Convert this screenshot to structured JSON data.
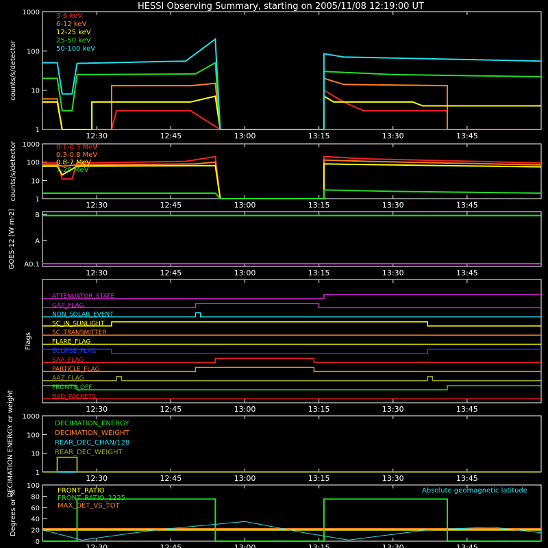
{
  "title": "HESSI Observing Summary, starting on 2005/11/08 12:19:00 UT",
  "time_ticks": [
    "12:30",
    "12:45",
    "13:00",
    "13:15",
    "13:30",
    "13:45"
  ],
  "colors": {
    "red": "#ff2020",
    "orange": "#ff8020",
    "yellow": "#ffff00",
    "green": "#20e020",
    "cyan": "#20e0f0",
    "magenta": "#e020e0",
    "blue": "#2040ff",
    "olive": "#a0a020",
    "white": "#ffffff",
    "axis": "#ffffff"
  },
  "chart_data": [
    {
      "type": "line",
      "ylabel": "counts/s/detector",
      "y_scale": "log",
      "y_ticks": [
        "1",
        "10",
        "100",
        "1000"
      ],
      "ylim": [
        1,
        1000
      ],
      "xlim": [
        "12:19",
        "14:00"
      ],
      "legend": [
        "3-6 keV",
        "6-12 keV",
        "12-25 keV",
        "25-50 keV",
        "50-100 keV"
      ],
      "series": [
        {
          "name": "3-6 keV",
          "color": "red",
          "points": [
            [
              "12:19",
              5
            ],
            [
              "12:22",
              5
            ],
            [
              "12:23",
              1
            ],
            [
              "12:33",
              1
            ],
            [
              "12:34",
              3
            ],
            [
              "12:49",
              3
            ],
            [
              "12:55",
              1
            ],
            [
              "13:16",
              1
            ],
            [
              "13:16",
              10
            ],
            [
              "13:20",
              5
            ],
            [
              "13:24",
              3
            ],
            [
              "13:41",
              3
            ],
            [
              "13:41",
              1
            ],
            [
              "14:00",
              1
            ]
          ]
        },
        {
          "name": "6-12 keV",
          "color": "orange",
          "points": [
            [
              "12:19",
              6
            ],
            [
              "12:22",
              6
            ],
            [
              "12:23",
              1
            ],
            [
              "12:33",
              1
            ],
            [
              "12:33",
              13
            ],
            [
              "12:49",
              13
            ],
            [
              "12:54",
              15
            ],
            [
              "12:55",
              1
            ],
            [
              "13:16",
              1
            ],
            [
              "13:16",
              20
            ],
            [
              "13:20",
              14
            ],
            [
              "13:41",
              13
            ],
            [
              "13:41",
              1
            ],
            [
              "14:00",
              1
            ]
          ]
        },
        {
          "name": "12-25 keV",
          "color": "yellow",
          "points": [
            [
              "12:19",
              5
            ],
            [
              "12:22",
              5
            ],
            [
              "12:23",
              1
            ],
            [
              "12:29",
              1
            ],
            [
              "12:29",
              5
            ],
            [
              "12:49",
              5
            ],
            [
              "12:54",
              7
            ],
            [
              "12:55",
              1
            ],
            [
              "13:16",
              1
            ],
            [
              "13:16",
              7
            ],
            [
              "13:18",
              5
            ],
            [
              "13:34",
              5
            ],
            [
              "13:36",
              4
            ],
            [
              "14:00",
              4
            ]
          ]
        },
        {
          "name": "25-50 keV",
          "color": "green",
          "points": [
            [
              "12:19",
              20
            ],
            [
              "12:22",
              20
            ],
            [
              "12:23",
              3
            ],
            [
              "12:25",
              3
            ],
            [
              "12:26",
              25
            ],
            [
              "12:50",
              26
            ],
            [
              "12:54",
              50
            ],
            [
              "12:55",
              1
            ],
            [
              "13:16",
              1
            ],
            [
              "13:16",
              30
            ],
            [
              "13:30",
              25
            ],
            [
              "14:00",
              22
            ]
          ]
        },
        {
          "name": "50-100 keV",
          "color": "cyan",
          "points": [
            [
              "12:19",
              50
            ],
            [
              "12:22",
              50
            ],
            [
              "12:23",
              8
            ],
            [
              "12:25",
              8
            ],
            [
              "12:26",
              48
            ],
            [
              "12:48",
              55
            ],
            [
              "12:54",
              200
            ],
            [
              "12:55",
              1
            ],
            [
              "13:16",
              1
            ],
            [
              "13:16",
              85
            ],
            [
              "13:20",
              70
            ],
            [
              "14:00",
              55
            ]
          ]
        }
      ]
    },
    {
      "type": "line",
      "ylabel": "counts/s/detector",
      "y_scale": "log",
      "y_ticks": [
        "1",
        "10",
        "100",
        "1000"
      ],
      "ylim": [
        1,
        1000
      ],
      "legend": [
        "0.1-0.3 MeV",
        "0.3-0.8 MeV",
        "0.8-7 MeV",
        "7-20 MeV"
      ],
      "series": [
        {
          "name": "0.1-0.3 MeV",
          "color": "red",
          "points": [
            [
              "12:19",
              90
            ],
            [
              "12:22",
              90
            ],
            [
              "12:23",
              12
            ],
            [
              "12:25",
              12
            ],
            [
              "12:26",
              90
            ],
            [
              "12:48",
              110
            ],
            [
              "12:54",
              200
            ],
            [
              "12:55",
              1
            ],
            [
              "13:16",
              1
            ],
            [
              "13:16",
              200
            ],
            [
              "13:25",
              150
            ],
            [
              "14:00",
              90
            ]
          ]
        },
        {
          "name": "0.3-0.8 MeV",
          "color": "orange",
          "points": [
            [
              "12:19",
              70
            ],
            [
              "12:22",
              70
            ],
            [
              "12:23",
              60
            ],
            [
              "12:26",
              70
            ],
            [
              "12:50",
              80
            ],
            [
              "12:54",
              100
            ],
            [
              "12:55",
              1
            ],
            [
              "13:16",
              1
            ],
            [
              "13:16",
              130
            ],
            [
              "13:25",
              110
            ],
            [
              "14:00",
              70
            ]
          ]
        },
        {
          "name": "0.8-7 MeV",
          "color": "yellow",
          "points": [
            [
              "12:19",
              60
            ],
            [
              "12:22",
              60
            ],
            [
              "12:23",
              20
            ],
            [
              "12:26",
              60
            ],
            [
              "12:54",
              65
            ],
            [
              "12:55",
              1
            ],
            [
              "13:16",
              1
            ],
            [
              "13:16",
              80
            ],
            [
              "13:30",
              70
            ],
            [
              "14:00",
              55
            ]
          ]
        },
        {
          "name": "7-20 MeV",
          "color": "green",
          "points": [
            [
              "12:19",
              2
            ],
            [
              "12:54",
              2
            ],
            [
              "12:55",
              1
            ],
            [
              "13:16",
              1
            ],
            [
              "13:16",
              3
            ],
            [
              "13:30",
              2.5
            ],
            [
              "14:00",
              2
            ]
          ]
        }
      ]
    },
    {
      "type": "line",
      "ylabel": "GOES-12 [W m-2]",
      "y_ticks": [
        "B",
        "A",
        "A0.1"
      ],
      "series": [
        {
          "name": "",
          "color": "green",
          "level": 0.93
        },
        {
          "name": "",
          "color": "magenta",
          "level": 0.05
        }
      ]
    },
    {
      "type": "line",
      "ylabel": "Flags",
      "series": [
        {
          "name": "ATTENUATOR_STATE",
          "color": "magenta",
          "steps": [
            [
              "12:19",
              0
            ],
            [
              "13:16",
              1
            ],
            [
              "14:00",
              1
            ]
          ]
        },
        {
          "name": "GAP_FLAG",
          "color": "magenta",
          "steps": [
            [
              "12:19",
              0
            ],
            [
              "12:50",
              1
            ],
            [
              "13:15",
              0
            ],
            [
              "14:00",
              0
            ]
          ]
        },
        {
          "name": "NON_SOLAR_EVENT",
          "color": "cyan",
          "steps": [
            [
              "12:19",
              0
            ],
            [
              "12:50",
              1
            ],
            [
              "12:51",
              0
            ],
            [
              "14:00",
              0
            ]
          ]
        },
        {
          "name": "SC_IN_SUNLIGHT",
          "color": "yellow",
          "steps": [
            [
              "12:19",
              0
            ],
            [
              "12:33",
              1
            ],
            [
              "13:37",
              0
            ],
            [
              "14:00",
              0
            ]
          ]
        },
        {
          "name": "SC_TRANSMITTER",
          "color": "orange",
          "steps": [
            [
              "12:19",
              0
            ],
            [
              "14:00",
              0
            ]
          ]
        },
        {
          "name": "FLARE_FLAG",
          "color": "yellow",
          "steps": [
            [
              "12:19",
              0
            ],
            [
              "14:00",
              0
            ]
          ]
        },
        {
          "name": "ECLIPSE_FLAG",
          "color": "blue",
          "steps": [
            [
              "12:19",
              1
            ],
            [
              "12:33",
              0
            ],
            [
              "13:37",
              1
            ],
            [
              "14:00",
              1
            ]
          ]
        },
        {
          "name": "SAA_FLAG",
          "color": "red",
          "steps": [
            [
              "12:19",
              0
            ],
            [
              "12:54",
              1
            ],
            [
              "13:14",
              0
            ],
            [
              "14:00",
              0
            ]
          ]
        },
        {
          "name": "PARTICLE_FLAG",
          "color": "orange",
          "steps": [
            [
              "12:19",
              0
            ],
            [
              "12:50",
              1
            ],
            [
              "13:14",
              0
            ],
            [
              "14:00",
              0
            ]
          ]
        },
        {
          "name": "AAZ_FLAG",
          "color": "olive",
          "steps": [
            [
              "12:19",
              0
            ],
            [
              "12:34",
              1
            ],
            [
              "12:35",
              0
            ],
            [
              "13:37",
              1
            ],
            [
              "13:38",
              0
            ],
            [
              "14:00",
              0
            ]
          ]
        },
        {
          "name": "FRONTS_OFF",
          "color": "green",
          "steps": [
            [
              "12:19",
              1
            ],
            [
              "12:26",
              0
            ],
            [
              "13:41",
              1
            ],
            [
              "14:00",
              1
            ]
          ]
        },
        {
          "name": "BAD_PACKETS",
          "color": "red",
          "steps": [
            [
              "12:19",
              0
            ],
            [
              "14:00",
              0
            ]
          ]
        }
      ]
    },
    {
      "type": "line",
      "ylabel": "DECIMATION ENERGY or weight",
      "y_scale": "log",
      "y_ticks": [
        "1",
        "10",
        "100",
        "1000"
      ],
      "ylim": [
        1,
        1000
      ],
      "legend": [
        "DECIMATION_ENERGY",
        "DECIMATION_WEIGHT",
        "REAR_DEC_CHAN/128",
        "REAR_DEC_WEIGHT"
      ],
      "series": [
        {
          "name": "DECIMATION_ENERGY",
          "color": "green",
          "points": [
            [
              "12:19",
              1
            ],
            [
              "14:00",
              1
            ]
          ]
        },
        {
          "name": "DECIMATION_WEIGHT",
          "color": "orange",
          "points": [
            [
              "12:19",
              1
            ],
            [
              "14:00",
              1
            ]
          ]
        },
        {
          "name": "REAR_DEC_CHAN/128",
          "color": "cyan",
          "points": [
            [
              "12:19",
              1
            ],
            [
              "14:00",
              1
            ]
          ]
        },
        {
          "name": "REAR_DEC_WEIGHT",
          "color": "olive",
          "points": [
            [
              "12:19",
              1
            ],
            [
              "12:22",
              1
            ],
            [
              "12:22",
              6
            ],
            [
              "12:26",
              6
            ],
            [
              "12:26",
              1
            ],
            [
              "14:00",
              1
            ]
          ]
        }
      ]
    },
    {
      "type": "line",
      "ylabel": "Degrees or %",
      "y_ticks": [
        "0",
        "20",
        "40",
        "60",
        "80",
        "100"
      ],
      "ylim": [
        0,
        100
      ],
      "legend": [
        "FRONT_RATIO",
        "FRONT_RATIO_1225",
        "MAX_DET_VS_TOT",
        "Absolute geomagnetic latitude"
      ],
      "series": [
        {
          "name": "FRONT_RATIO",
          "color": "yellow",
          "points": [
            [
              "12:19",
              20
            ],
            [
              "14:00",
              20
            ]
          ]
        },
        {
          "name": "FRONT_RATIO_1225",
          "color": "green",
          "points": [
            [
              "12:19",
              0
            ],
            [
              "12:26",
              0
            ],
            [
              "12:26",
              75
            ],
            [
              "12:54",
              75
            ],
            [
              "12:54",
              0
            ],
            [
              "13:16",
              0
            ],
            [
              "13:16",
              75
            ],
            [
              "13:41",
              75
            ],
            [
              "13:41",
              0
            ],
            [
              "14:00",
              0
            ]
          ]
        },
        {
          "name": "MAX_DET_VS_TOT",
          "color": "orange",
          "points": [
            [
              "12:19",
              22
            ],
            [
              "14:00",
              22
            ]
          ]
        },
        {
          "name": "Absolute geomagnetic latitude",
          "color": "cyan",
          "points": [
            [
              "12:19",
              20
            ],
            [
              "12:27",
              2
            ],
            [
              "12:42",
              20
            ],
            [
              "13:00",
              35
            ],
            [
              "13:12",
              15
            ],
            [
              "13:21",
              2
            ],
            [
              "13:37",
              20
            ],
            [
              "13:50",
              25
            ],
            [
              "14:00",
              15
            ]
          ]
        }
      ]
    }
  ]
}
